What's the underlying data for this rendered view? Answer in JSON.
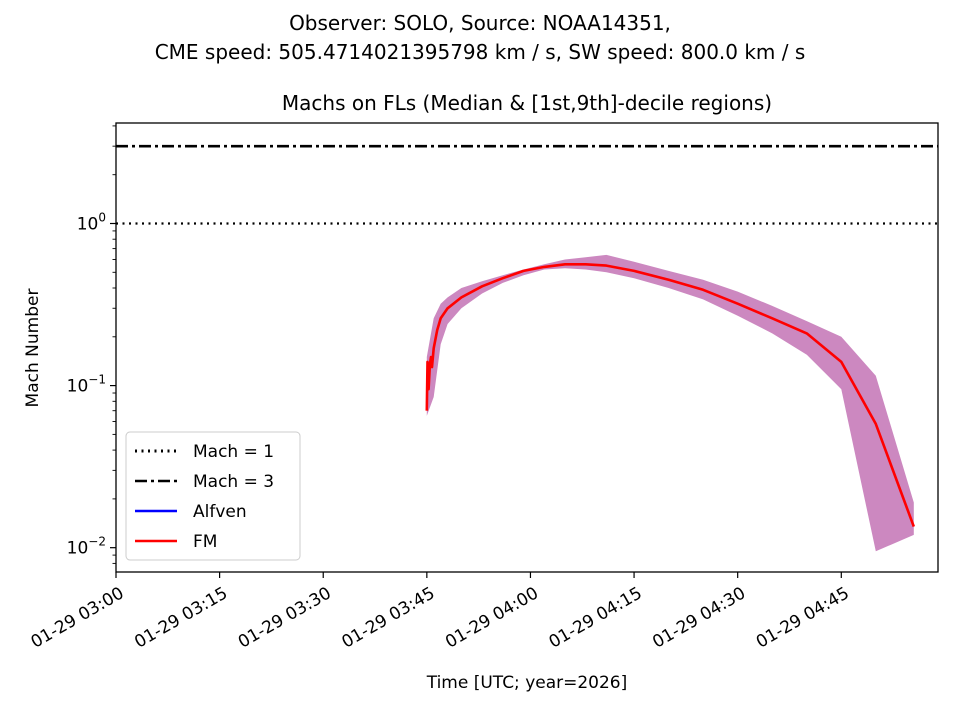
{
  "figure": {
    "suptitle_line1": "Observer: SOLO, Source: NOAA14351,",
    "suptitle_line2": "CME speed: 505.4714021395798 km / s, SW speed: 800.0 km / s"
  },
  "chart_data": {
    "type": "line",
    "title": "Machs on FLs (Median & [1st,9th]-decile regions)",
    "xlabel": "Time [UTC; year=2026]",
    "ylabel": "Mach Number",
    "xlim_minutes_from_0300": [
      0,
      119
    ],
    "ylim_log10": [
      -2.15,
      0.62
    ],
    "yscale": "log",
    "x_tick_labels": [
      "01-29 03:00",
      "01-29 03:15",
      "01-29 03:30",
      "01-29 03:45",
      "01-29 04:00",
      "01-29 04:15",
      "01-29 04:30",
      "01-29 04:45"
    ],
    "x_tick_minutes": [
      0,
      15,
      30,
      45,
      60,
      75,
      90,
      105
    ],
    "y_ticks": [
      {
        "exp": 0,
        "label": "10",
        "sup": "0"
      },
      {
        "exp": -1,
        "label": "10",
        "sup": "−1"
      },
      {
        "exp": -2,
        "label": "10",
        "sup": "−2"
      }
    ],
    "reference_lines": [
      {
        "name": "Mach = 1",
        "value": 1.0,
        "style": "dotted",
        "color": "#000000"
      },
      {
        "name": "Mach = 3",
        "value": 3.0,
        "style": "dashdot",
        "color": "#000000"
      }
    ],
    "series": [
      {
        "name": "Alfven",
        "color": "#0000ff",
        "x": [],
        "y": []
      },
      {
        "name": "FM",
        "color": "#ff0000",
        "x": [
          45.0,
          45.1,
          45.25,
          45.45,
          45.6,
          45.75,
          46.0,
          46.5,
          47.0,
          48.0,
          50.0,
          53.0,
          56.0,
          59.0,
          62.0,
          65.0,
          68.0,
          71.0,
          75.0,
          80.0,
          85.0,
          90.0,
          95.0,
          100.0,
          105.0,
          110.0,
          115.5
        ],
        "y": [
          0.07,
          0.14,
          0.095,
          0.135,
          0.15,
          0.13,
          0.17,
          0.22,
          0.26,
          0.3,
          0.35,
          0.41,
          0.46,
          0.51,
          0.54,
          0.56,
          0.56,
          0.55,
          0.51,
          0.45,
          0.39,
          0.32,
          0.26,
          0.21,
          0.14,
          0.058,
          0.0135
        ]
      },
      {
        "name": "FM band (1st–9th decile)",
        "color": "#cc88c0",
        "x": [
          45.0,
          46.0,
          47.0,
          48.0,
          50.0,
          53.0,
          56.0,
          59.0,
          62.0,
          65.0,
          68.0,
          71.0,
          75.0,
          80.0,
          85.0,
          90.0,
          95.0,
          100.0,
          105.0,
          110.0,
          115.5
        ],
        "y_low": [
          0.065,
          0.085,
          0.18,
          0.24,
          0.3,
          0.37,
          0.43,
          0.48,
          0.52,
          0.53,
          0.52,
          0.5,
          0.46,
          0.4,
          0.34,
          0.27,
          0.21,
          0.155,
          0.095,
          0.0095,
          0.012
        ],
        "y_high": [
          0.15,
          0.26,
          0.32,
          0.35,
          0.4,
          0.44,
          0.48,
          0.52,
          0.56,
          0.6,
          0.62,
          0.64,
          0.58,
          0.51,
          0.45,
          0.38,
          0.31,
          0.25,
          0.2,
          0.115,
          0.019
        ]
      }
    ],
    "legend": {
      "placement": "lower-left",
      "entries": [
        {
          "label": "Mach = 1",
          "style": "dotted",
          "color": "#000000"
        },
        {
          "label": "Mach = 3",
          "style": "dashdot",
          "color": "#000000"
        },
        {
          "label": "Alfven",
          "style": "solid",
          "color": "#0000ff"
        },
        {
          "label": "FM",
          "style": "solid",
          "color": "#ff0000"
        }
      ]
    },
    "grid": false
  }
}
